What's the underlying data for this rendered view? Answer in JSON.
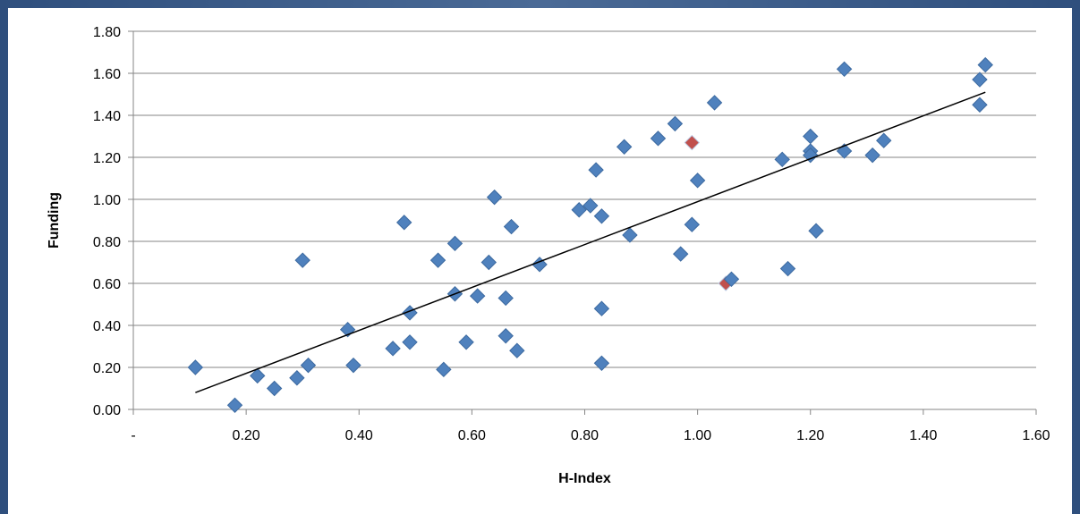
{
  "chart_data": {
    "type": "scatter",
    "xlabel": "H-Index",
    "ylabel": "Funding",
    "xlim": [
      0,
      1.6
    ],
    "ylim": [
      0,
      1.8
    ],
    "x_ticks": [
      "-",
      "0.20",
      "0.40",
      "0.60",
      "0.80",
      "1.00",
      "1.20",
      "1.40",
      "1.60"
    ],
    "y_ticks": [
      "0.00",
      "0.20",
      "0.40",
      "0.60",
      "0.80",
      "1.00",
      "1.20",
      "1.40",
      "1.60",
      "1.80"
    ],
    "grid": "horizontal",
    "marker": "diamond",
    "colors": {
      "points": "#4f81bd",
      "highlight": "#c0504d",
      "trendline": "#000000"
    },
    "points": [
      {
        "x": 0.11,
        "y": 0.2
      },
      {
        "x": 0.18,
        "y": 0.02
      },
      {
        "x": 0.22,
        "y": 0.16
      },
      {
        "x": 0.25,
        "y": 0.1
      },
      {
        "x": 0.29,
        "y": 0.15
      },
      {
        "x": 0.3,
        "y": 0.71
      },
      {
        "x": 0.31,
        "y": 0.21
      },
      {
        "x": 0.38,
        "y": 0.38
      },
      {
        "x": 0.39,
        "y": 0.21
      },
      {
        "x": 0.46,
        "y": 0.29
      },
      {
        "x": 0.48,
        "y": 0.89
      },
      {
        "x": 0.49,
        "y": 0.46
      },
      {
        "x": 0.49,
        "y": 0.32
      },
      {
        "x": 0.54,
        "y": 0.71
      },
      {
        "x": 0.55,
        "y": 0.19
      },
      {
        "x": 0.57,
        "y": 0.79
      },
      {
        "x": 0.57,
        "y": 0.55
      },
      {
        "x": 0.59,
        "y": 0.32
      },
      {
        "x": 0.61,
        "y": 0.54
      },
      {
        "x": 0.63,
        "y": 0.7
      },
      {
        "x": 0.64,
        "y": 1.01
      },
      {
        "x": 0.66,
        "y": 0.53
      },
      {
        "x": 0.66,
        "y": 0.35
      },
      {
        "x": 0.67,
        "y": 0.87
      },
      {
        "x": 0.68,
        "y": 0.28
      },
      {
        "x": 0.72,
        "y": 0.69
      },
      {
        "x": 0.79,
        "y": 0.95
      },
      {
        "x": 0.81,
        "y": 0.97
      },
      {
        "x": 0.82,
        "y": 1.14
      },
      {
        "x": 0.83,
        "y": 0.22
      },
      {
        "x": 0.83,
        "y": 0.92
      },
      {
        "x": 0.83,
        "y": 0.48
      },
      {
        "x": 0.87,
        "y": 1.25
      },
      {
        "x": 0.88,
        "y": 0.83
      },
      {
        "x": 0.93,
        "y": 1.29
      },
      {
        "x": 0.96,
        "y": 1.36
      },
      {
        "x": 0.97,
        "y": 0.74
      },
      {
        "x": 0.99,
        "y": 1.27,
        "highlight": true
      },
      {
        "x": 0.99,
        "y": 0.88
      },
      {
        "x": 1.0,
        "y": 1.09
      },
      {
        "x": 1.03,
        "y": 1.46
      },
      {
        "x": 1.05,
        "y": 0.6,
        "highlight": true
      },
      {
        "x": 1.06,
        "y": 0.62
      },
      {
        "x": 1.15,
        "y": 1.19
      },
      {
        "x": 1.16,
        "y": 0.67
      },
      {
        "x": 1.2,
        "y": 1.3
      },
      {
        "x": 1.2,
        "y": 1.23
      },
      {
        "x": 1.2,
        "y": 1.21
      },
      {
        "x": 1.21,
        "y": 0.85
      },
      {
        "x": 1.26,
        "y": 1.62
      },
      {
        "x": 1.26,
        "y": 1.23
      },
      {
        "x": 1.31,
        "y": 1.21
      },
      {
        "x": 1.33,
        "y": 1.28
      },
      {
        "x": 1.5,
        "y": 1.57
      },
      {
        "x": 1.5,
        "y": 1.45
      },
      {
        "x": 1.51,
        "y": 1.64
      }
    ],
    "trendline": {
      "x": [
        0.11,
        1.51
      ],
      "y": [
        0.08,
        1.51
      ]
    }
  }
}
